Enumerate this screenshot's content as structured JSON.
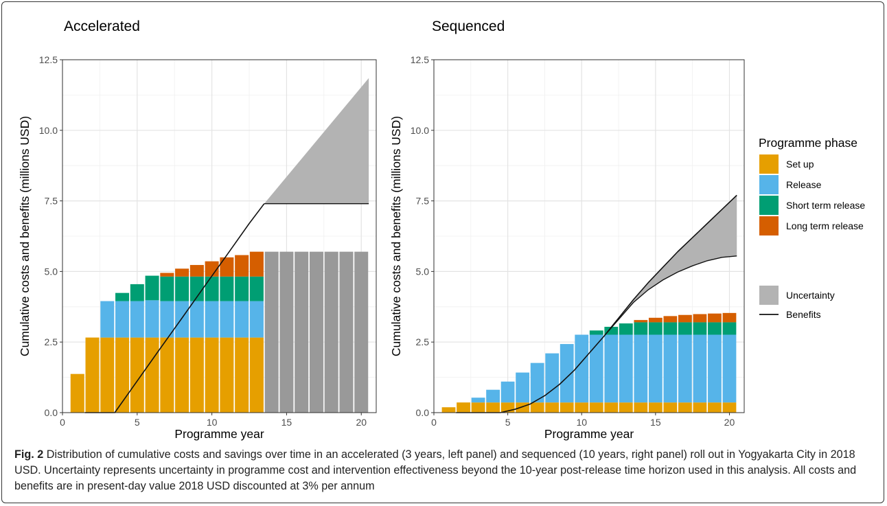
{
  "chart_data": [
    {
      "type": "bar",
      "title": "Accelerated",
      "xlabel": "Programme year",
      "ylabel": "Cumulative costs and benefits (millions USD)",
      "xlim": [
        0,
        21
      ],
      "ylim": [
        0,
        12.5
      ],
      "x_ticks": [
        "0",
        "5",
        "10",
        "15",
        "20"
      ],
      "y_ticks": [
        "0.0",
        "2.5",
        "5.0",
        "7.5",
        "10.0",
        "12.5"
      ],
      "stacked": true,
      "grid": true,
      "x": [
        1,
        2,
        3,
        4,
        5,
        6,
        7,
        8,
        9,
        10,
        11,
        12,
        13,
        14,
        15,
        16,
        17,
        18,
        19,
        20
      ],
      "series": [
        {
          "name": "Set up",
          "values": [
            1.37,
            2.66,
            2.66,
            2.66,
            2.66,
            2.66,
            2.66,
            2.66,
            2.66,
            2.66,
            2.66,
            2.66,
            2.66,
            0,
            0,
            0,
            0,
            0,
            0,
            0
          ]
        },
        {
          "name": "Release",
          "values": [
            0,
            0,
            1.29,
            1.29,
            1.29,
            1.32,
            1.29,
            1.29,
            1.29,
            1.29,
            1.29,
            1.29,
            1.29,
            0,
            0,
            0,
            0,
            0,
            0,
            0
          ]
        },
        {
          "name": "Short term release",
          "values": [
            0,
            0,
            0,
            0.29,
            0.6,
            0.87,
            0.87,
            0.87,
            0.87,
            0.87,
            0.87,
            0.87,
            0.87,
            0,
            0,
            0,
            0,
            0,
            0,
            0
          ]
        },
        {
          "name": "Long term release",
          "values": [
            0,
            0,
            0,
            0,
            0,
            0,
            0.13,
            0.28,
            0.41,
            0.54,
            0.68,
            0.76,
            0.88,
            0,
            0,
            0,
            0,
            0,
            0,
            0
          ]
        },
        {
          "name": "Uncertainty",
          "values": [
            0,
            0,
            0,
            0,
            0,
            0,
            0,
            0,
            0,
            0,
            0,
            0,
            0,
            5.7,
            5.7,
            5.7,
            5.7,
            5.7,
            5.7,
            5.7
          ]
        }
      ],
      "benefits": {
        "x": [
          1.5,
          2.5,
          3.5,
          5,
          6.5,
          8,
          9.5,
          11,
          12.5,
          13.5
        ],
        "y": [
          0,
          0,
          0,
          1.12,
          2.24,
          3.35,
          4.47,
          5.58,
          6.7,
          7.4
        ]
      },
      "uncertainty_band": {
        "x": [
          13.5,
          20.5
        ],
        "lower": [
          7.4,
          7.4
        ],
        "upper": [
          7.4,
          11.85
        ]
      },
      "colors": {
        "Set up": "#E69F00",
        "Release": "#56B4E9",
        "Short term release": "#009E73",
        "Long term release": "#D55E00",
        "Uncertainty": "#999999",
        "band": "#b3b3b3"
      }
    },
    {
      "type": "bar",
      "title": "Sequenced",
      "xlabel": "Programme year",
      "ylabel": "Cumulative costs and benefits (millions USD)",
      "xlim": [
        0,
        21
      ],
      "ylim": [
        0,
        12.5
      ],
      "x_ticks": [
        "0",
        "5",
        "10",
        "15",
        "20"
      ],
      "y_ticks": [
        "0.0",
        "2.5",
        "5.0",
        "7.5",
        "10.0",
        "12.5"
      ],
      "stacked": true,
      "grid": true,
      "x": [
        1,
        2,
        3,
        4,
        5,
        6,
        7,
        8,
        9,
        10,
        11,
        12,
        13,
        14,
        15,
        16,
        17,
        18,
        19,
        20
      ],
      "series": [
        {
          "name": "Set up",
          "values": [
            0.19,
            0.36,
            0.36,
            0.36,
            0.36,
            0.36,
            0.36,
            0.36,
            0.36,
            0.36,
            0.36,
            0.36,
            0.36,
            0.36,
            0.36,
            0.36,
            0.36,
            0.36,
            0.36,
            0.36
          ]
        },
        {
          "name": "Release",
          "values": [
            0,
            0,
            0.17,
            0.45,
            0.74,
            1.06,
            1.4,
            1.74,
            2.07,
            2.4,
            2.4,
            2.4,
            2.4,
            2.4,
            2.4,
            2.4,
            2.4,
            2.4,
            2.4,
            2.4
          ]
        },
        {
          "name": "Short term release",
          "values": [
            0,
            0,
            0,
            0,
            0,
            0,
            0,
            0,
            0,
            0,
            0.15,
            0.28,
            0.4,
            0.44,
            0.44,
            0.44,
            0.44,
            0.44,
            0.44,
            0.44
          ]
        },
        {
          "name": "Long term release",
          "values": [
            0,
            0,
            0,
            0,
            0,
            0,
            0,
            0,
            0,
            0,
            0,
            0,
            0,
            0.08,
            0.16,
            0.22,
            0.26,
            0.29,
            0.31,
            0.33
          ]
        }
      ],
      "benefits": {
        "x": [
          1.5,
          2.5,
          3.5,
          4.5,
          5.5,
          6.5,
          7.5,
          8.5,
          9.5,
          10.5,
          11.5,
          12.5,
          13.5,
          14.5,
          15.5,
          16.5,
          17.5,
          18.5,
          19.5,
          20.5
        ],
        "y": [
          0,
          0,
          0,
          0,
          0.12,
          0.3,
          0.6,
          1,
          1.5,
          2.1,
          2.7,
          3.35,
          4.0,
          4.6,
          5.15,
          5.7,
          6.2,
          6.7,
          7.2,
          7.7
        ]
      },
      "uncertainty_band": {
        "x": [
          11.5,
          12.5,
          13.5,
          14.5,
          15.5,
          16.5,
          17.5,
          18.5,
          19.5,
          20.5
        ],
        "lower": [
          2.7,
          3.3,
          3.9,
          4.35,
          4.7,
          4.98,
          5.2,
          5.38,
          5.5,
          5.55
        ],
        "upper": [
          2.7,
          3.35,
          4.0,
          4.6,
          5.15,
          5.7,
          6.2,
          6.7,
          7.2,
          7.7
        ]
      },
      "colors": {
        "Set up": "#E69F00",
        "Release": "#56B4E9",
        "Short term release": "#009E73",
        "Long term release": "#D55E00",
        "band": "#b3b3b3"
      }
    }
  ],
  "legend": {
    "title": "Programme phase",
    "items": [
      {
        "label": "Set up",
        "color": "#E69F00"
      },
      {
        "label": "Release",
        "color": "#56B4E9"
      },
      {
        "label": "Short term release",
        "color": "#009E73"
      },
      {
        "label": "Long term release",
        "color": "#D55E00"
      }
    ],
    "uncertainty_label": "Uncertainty",
    "uncertainty_color": "#b3b3b3",
    "benefits_label": "Benefits"
  },
  "caption": {
    "label": "Fig. 2",
    "text": " Distribution of cumulative costs and savings over time in an accelerated (3 years, left panel) and sequenced (10 years, right panel) roll out in Yogyakarta City in 2018 USD. Uncertainty represents uncertainty in programme cost and intervention effectiveness beyond the 10-year post-release time horizon used in this analysis. All costs and benefits are in present-day value 2018 USD discounted at 3% per annum"
  }
}
